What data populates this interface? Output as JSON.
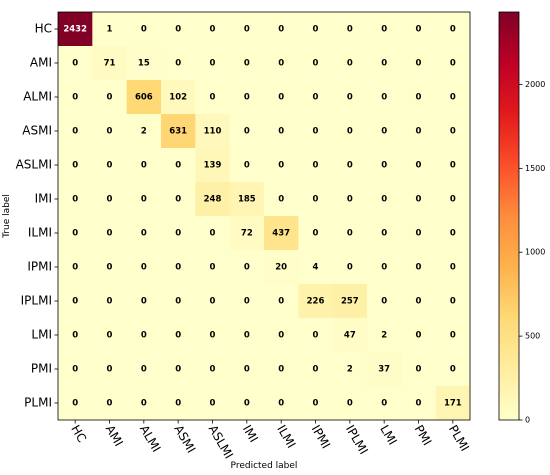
{
  "chart_data": {
    "type": "heatmap",
    "title": "",
    "xlabel": "Predicted label",
    "ylabel": "True label",
    "x_categories": [
      "HC",
      "AMI",
      "ALMI",
      "ASMI",
      "ASLMI",
      "IMI",
      "ILMI",
      "IPMI",
      "IPLMI",
      "LMI",
      "PMI",
      "PLMI"
    ],
    "y_categories": [
      "HC",
      "AMI",
      "ALMI",
      "ASMI",
      "ASLMI",
      "IMI",
      "ILMI",
      "IPMI",
      "IPLMI",
      "LMI",
      "PMI",
      "PLMI"
    ],
    "values": [
      [
        2432,
        1,
        0,
        0,
        0,
        0,
        0,
        0,
        0,
        0,
        0,
        0
      ],
      [
        0,
        71,
        15,
        0,
        0,
        0,
        0,
        0,
        0,
        0,
        0,
        0
      ],
      [
        0,
        0,
        606,
        102,
        0,
        0,
        0,
        0,
        0,
        0,
        0,
        0
      ],
      [
        0,
        0,
        2,
        631,
        110,
        0,
        0,
        0,
        0,
        0,
        0,
        0
      ],
      [
        0,
        0,
        0,
        0,
        139,
        0,
        0,
        0,
        0,
        0,
        0,
        0
      ],
      [
        0,
        0,
        0,
        0,
        248,
        185,
        0,
        0,
        0,
        0,
        0,
        0
      ],
      [
        0,
        0,
        0,
        0,
        0,
        72,
        437,
        0,
        0,
        0,
        0,
        0
      ],
      [
        0,
        0,
        0,
        0,
        0,
        0,
        20,
        4,
        0,
        0,
        0,
        0
      ],
      [
        0,
        0,
        0,
        0,
        0,
        0,
        0,
        226,
        257,
        0,
        0,
        0
      ],
      [
        0,
        0,
        0,
        0,
        0,
        0,
        0,
        0,
        47,
        2,
        0,
        0
      ],
      [
        0,
        0,
        0,
        0,
        0,
        0,
        0,
        0,
        2,
        37,
        0,
        0
      ],
      [
        0,
        0,
        0,
        0,
        0,
        0,
        0,
        0,
        0,
        0,
        0,
        171
      ]
    ],
    "colormap": "YlOrRd",
    "colorbar": {
      "min": 0,
      "max": 2432,
      "ticks": [
        0,
        500,
        1000,
        1500,
        2000
      ]
    }
  }
}
